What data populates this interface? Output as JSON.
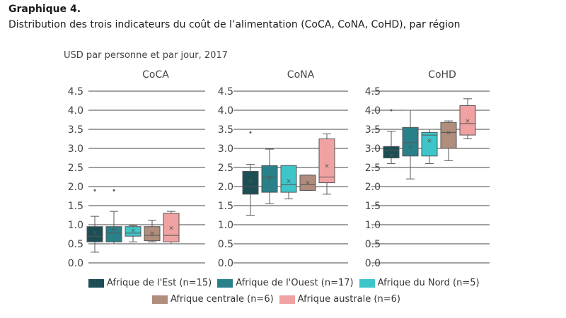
{
  "figure": {
    "title": "Graphique 4.",
    "subtitle": "Distribution des trois indicateurs du coût de l’alimentation (CoCA, CoNA, CoHD), par région"
  },
  "chart_data": {
    "type": "box",
    "ylabel": "USD par personne et par jour, 2017",
    "ylim": [
      0,
      4.5
    ],
    "yticks": [
      "0.0",
      "0.5",
      "1.0",
      "1.5",
      "2.0",
      "2.5",
      "3.0",
      "3.5",
      "4.0",
      "4.5"
    ],
    "panels": [
      {
        "title": "CoCA",
        "boxes": [
          {
            "region": "Afrique de l'Est",
            "min": 0.28,
            "q1": 0.55,
            "median": 0.7,
            "q3": 0.95,
            "max": 1.22,
            "mean": 0.8,
            "outliers": [
              1.9
            ]
          },
          {
            "region": "Afrique de l'Ouest",
            "min": 0.5,
            "q1": 0.55,
            "median": 0.78,
            "q3": 0.95,
            "max": 1.35,
            "mean": 0.88,
            "outliers": [
              1.9
            ]
          },
          {
            "region": "Afrique du Nord",
            "min": 0.55,
            "q1": 0.7,
            "median": 0.78,
            "q3": 0.95,
            "max": 0.98,
            "mean": 0.85,
            "outliers": []
          },
          {
            "region": "Afrique centrale",
            "min": 0.55,
            "q1": 0.58,
            "median": 0.72,
            "q3": 0.95,
            "max": 1.12,
            "mean": 0.78,
            "outliers": []
          },
          {
            "region": "Afrique australe",
            "min": 0.5,
            "q1": 0.55,
            "median": 0.72,
            "q3": 1.3,
            "max": 1.35,
            "mean": 0.92,
            "outliers": []
          }
        ]
      },
      {
        "title": "CoNA",
        "boxes": [
          {
            "region": "Afrique de l'Est",
            "min": 1.25,
            "q1": 1.8,
            "median": 2.0,
            "q3": 2.4,
            "max": 2.58,
            "mean": 2.15,
            "outliers": [
              3.42
            ]
          },
          {
            "region": "Afrique de l'Ouest",
            "min": 1.55,
            "q1": 1.85,
            "median": 2.25,
            "q3": 2.55,
            "max": 2.98,
            "mean": 2.23,
            "outliers": []
          },
          {
            "region": "Afrique du Nord",
            "min": 1.68,
            "q1": 1.85,
            "median": 2.05,
            "q3": 2.55,
            "max": 2.55,
            "mean": 2.15,
            "outliers": []
          },
          {
            "region": "Afrique centrale",
            "min": 1.9,
            "q1": 1.9,
            "median": 2.05,
            "q3": 2.3,
            "max": 2.3,
            "mean": 2.1,
            "outliers": []
          },
          {
            "region": "Afrique australe",
            "min": 1.8,
            "q1": 2.1,
            "median": 2.25,
            "q3": 3.25,
            "max": 3.38,
            "mean": 2.55,
            "outliers": []
          }
        ]
      },
      {
        "title": "CoHD",
        "boxes": [
          {
            "region": "Afrique de l'Est",
            "min": 2.6,
            "q1": 2.75,
            "median": 2.95,
            "q3": 3.05,
            "max": 3.45,
            "mean": 2.82,
            "outliers": [
              4.0
            ]
          },
          {
            "region": "Afrique de l'Ouest",
            "min": 2.2,
            "q1": 2.8,
            "median": 3.15,
            "q3": 3.55,
            "max": 4.0,
            "mean": 3.05,
            "outliers": []
          },
          {
            "region": "Afrique du Nord",
            "min": 2.6,
            "q1": 2.8,
            "median": 3.35,
            "q3": 3.42,
            "max": 3.5,
            "mean": 3.2,
            "outliers": []
          },
          {
            "region": "Afrique centrale",
            "min": 2.68,
            "q1": 3.0,
            "median": 3.42,
            "q3": 3.68,
            "max": 3.72,
            "mean": 3.42,
            "outliers": []
          },
          {
            "region": "Afrique australe",
            "min": 3.25,
            "q1": 3.35,
            "median": 3.65,
            "q3": 4.12,
            "max": 4.3,
            "mean": 3.72,
            "outliers": []
          }
        ]
      }
    ],
    "legend": [
      {
        "label": "Afrique de l'Est (n=15)",
        "color": "#1c4f55"
      },
      {
        "label": "Afrique de l'Ouest (n=17)",
        "color": "#2a8089"
      },
      {
        "label": "Afrique du Nord (n=5)",
        "color": "#3ec5c9"
      },
      {
        "label": "Afrique centrale (n=6)",
        "color": "#b08d7c"
      },
      {
        "label": "Afrique australe (n=6)",
        "color": "#f0a1a1"
      }
    ]
  }
}
